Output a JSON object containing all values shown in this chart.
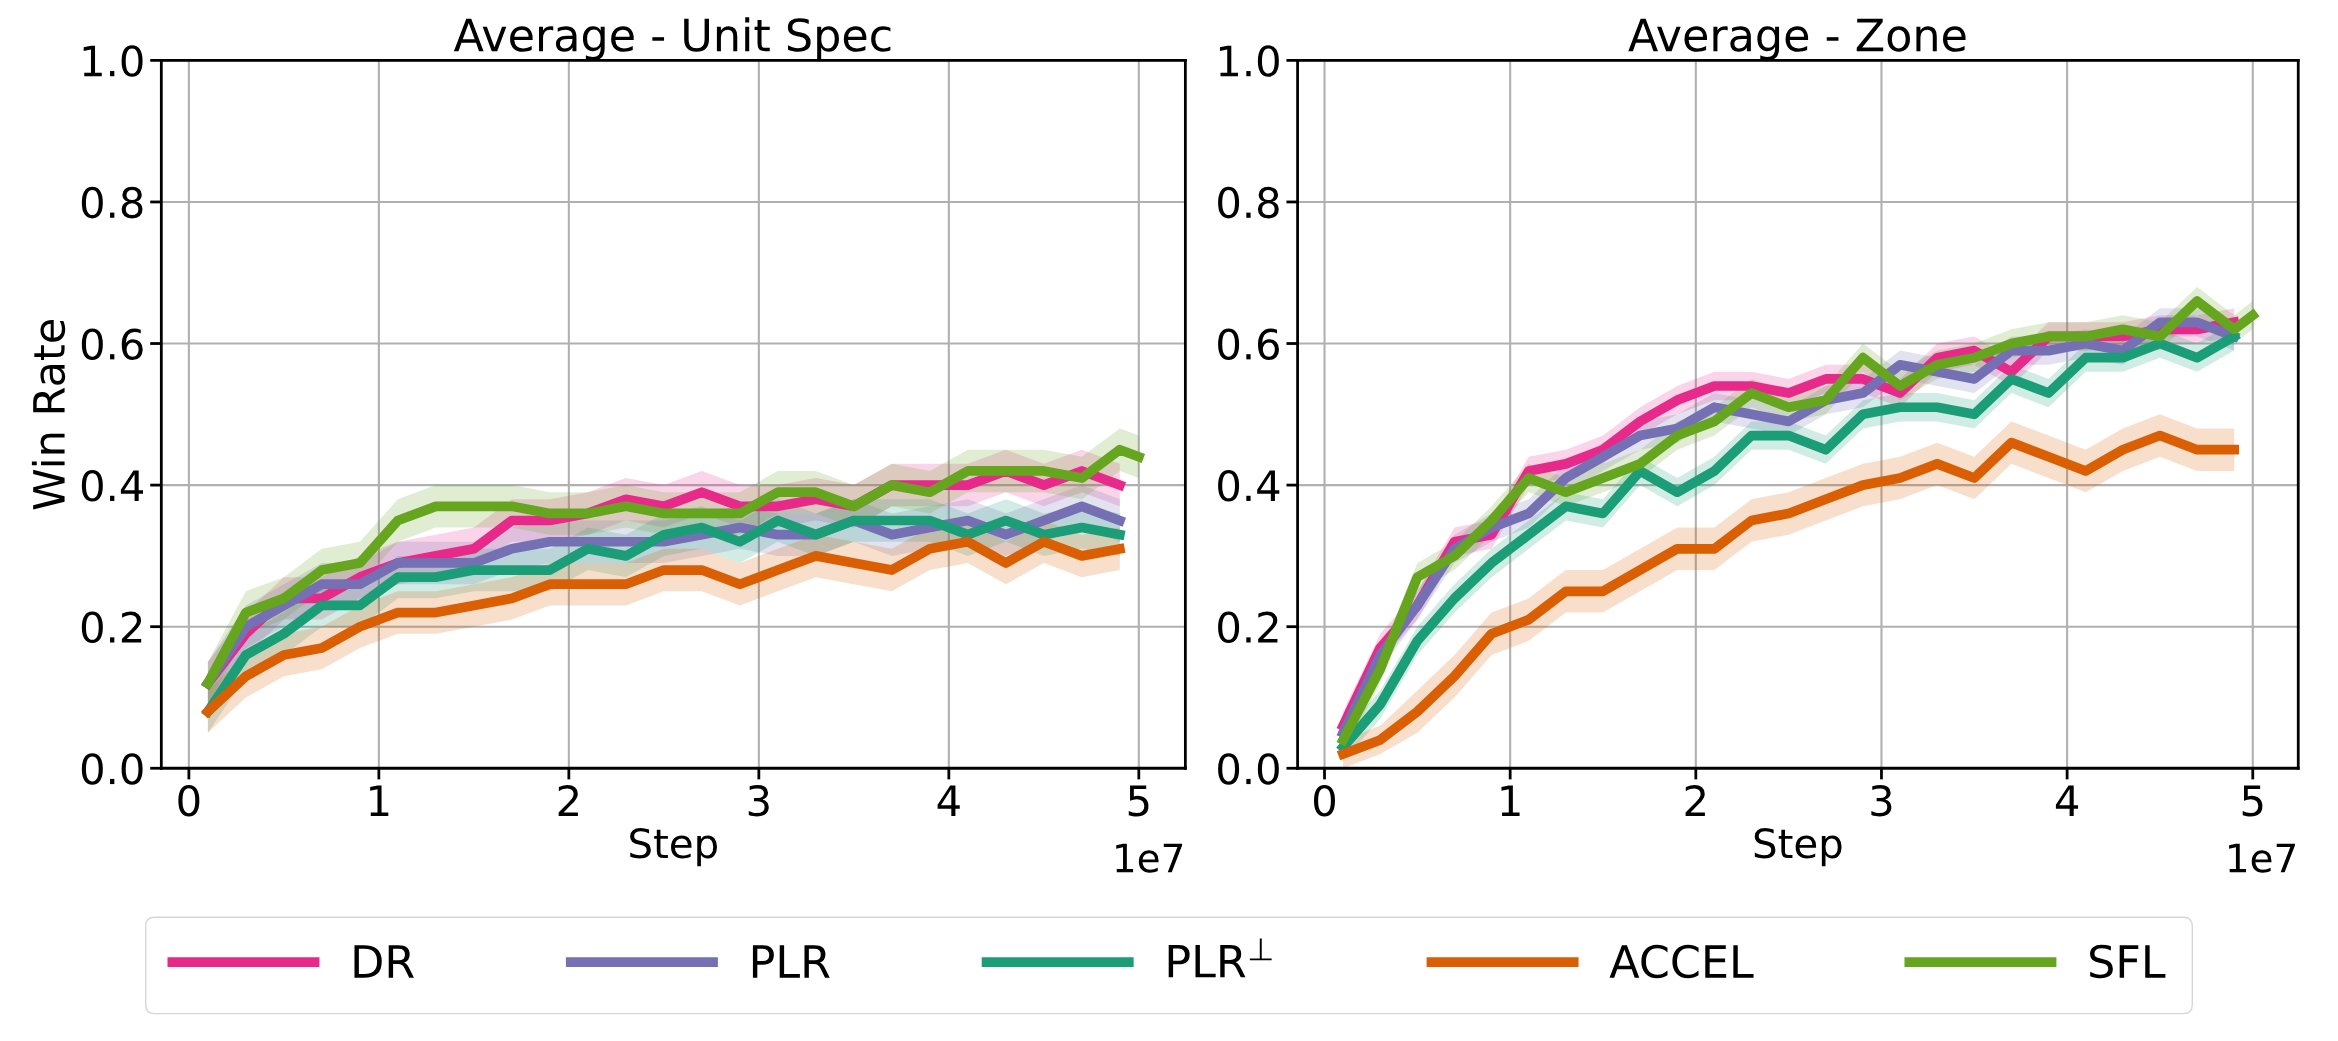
{
  "chart_data": [
    {
      "type": "line",
      "title": "Average - Unit Spec",
      "xlabel": "Step",
      "ylabel": "Win Rate",
      "annotations": [
        "1e7"
      ],
      "x": [
        0.1,
        0.3,
        0.5,
        0.7,
        0.9,
        1.1,
        1.3,
        1.5,
        1.7,
        1.9,
        2.1,
        2.3,
        2.5,
        2.7,
        2.9,
        3.1,
        3.3,
        3.5,
        3.7,
        3.9,
        4.1,
        4.3,
        4.5,
        4.7,
        4.9
      ],
      "xlim": [
        -0.145,
        5.245
      ],
      "xticks": [
        0,
        1,
        2,
        3,
        4,
        5
      ],
      "ylim": [
        0,
        1
      ],
      "yticks": [
        {
          "value": 0,
          "label": "0.0"
        },
        {
          "value": 0.2,
          "label": "0.2"
        },
        {
          "value": 0.4,
          "label": "0.4"
        },
        {
          "value": 0.6,
          "label": "0.6"
        },
        {
          "value": 0.8,
          "label": "0.8"
        },
        {
          "value": 1,
          "label": "1.0"
        }
      ],
      "grid": true,
      "legend": "bottom",
      "line_style": "solid",
      "marker": "none",
      "series": [
        {
          "name": "DR",
          "color": "#e7298a",
          "values": [
            0.12,
            0.19,
            0.24,
            0.24,
            0.27,
            0.29,
            0.3,
            0.31,
            0.35,
            0.35,
            0.36,
            0.38,
            0.37,
            0.39,
            0.37,
            0.37,
            0.38,
            0.37,
            0.4,
            0.4,
            0.4,
            0.42,
            0.4,
            0.42,
            0.4
          ],
          "lower": [
            0.09,
            0.16,
            0.21,
            0.21,
            0.24,
            0.26,
            0.27,
            0.28,
            0.32,
            0.32,
            0.33,
            0.35,
            0.34,
            0.36,
            0.34,
            0.34,
            0.35,
            0.34,
            0.37,
            0.37,
            0.37,
            0.39,
            0.37,
            0.39,
            0.37
          ],
          "upper": [
            0.15,
            0.22,
            0.27,
            0.27,
            0.3,
            0.32,
            0.33,
            0.34,
            0.38,
            0.38,
            0.39,
            0.41,
            0.4,
            0.42,
            0.4,
            0.4,
            0.41,
            0.4,
            0.43,
            0.43,
            0.43,
            0.45,
            0.43,
            0.45,
            0.43
          ]
        },
        {
          "name": "PLR",
          "color": "#7570b3",
          "values": [
            0.12,
            0.2,
            0.23,
            0.26,
            0.26,
            0.29,
            0.29,
            0.29,
            0.31,
            0.32,
            0.32,
            0.32,
            0.32,
            0.33,
            0.34,
            0.33,
            0.33,
            0.35,
            0.33,
            0.34,
            0.35,
            0.33,
            0.35,
            0.37,
            0.35
          ],
          "lower": [
            0.09,
            0.17,
            0.2,
            0.23,
            0.23,
            0.26,
            0.26,
            0.26,
            0.28,
            0.29,
            0.29,
            0.29,
            0.29,
            0.3,
            0.31,
            0.3,
            0.3,
            0.32,
            0.3,
            0.31,
            0.32,
            0.3,
            0.32,
            0.34,
            0.32
          ],
          "upper": [
            0.15,
            0.23,
            0.26,
            0.29,
            0.29,
            0.32,
            0.32,
            0.32,
            0.34,
            0.35,
            0.35,
            0.35,
            0.35,
            0.36,
            0.37,
            0.36,
            0.36,
            0.38,
            0.36,
            0.37,
            0.38,
            0.36,
            0.38,
            0.4,
            0.38
          ]
        },
        {
          "name": "PLR$^{⊥}$",
          "color": "#1b9e77",
          "values": [
            0.08,
            0.16,
            0.19,
            0.23,
            0.23,
            0.27,
            0.27,
            0.28,
            0.28,
            0.28,
            0.31,
            0.3,
            0.33,
            0.34,
            0.32,
            0.35,
            0.33,
            0.35,
            0.35,
            0.35,
            0.33,
            0.35,
            0.33,
            0.34,
            0.33
          ],
          "lower": [
            0.05,
            0.13,
            0.16,
            0.2,
            0.2,
            0.24,
            0.24,
            0.25,
            0.25,
            0.25,
            0.28,
            0.27,
            0.3,
            0.31,
            0.29,
            0.32,
            0.3,
            0.32,
            0.32,
            0.32,
            0.3,
            0.32,
            0.3,
            0.31,
            0.3
          ],
          "upper": [
            0.11,
            0.19,
            0.22,
            0.26,
            0.26,
            0.3,
            0.3,
            0.31,
            0.31,
            0.31,
            0.34,
            0.33,
            0.36,
            0.37,
            0.35,
            0.38,
            0.36,
            0.38,
            0.38,
            0.38,
            0.36,
            0.38,
            0.36,
            0.37,
            0.36
          ]
        },
        {
          "name": "ACCEL",
          "color": "#d95f02",
          "values": [
            0.08,
            0.13,
            0.16,
            0.17,
            0.2,
            0.22,
            0.22,
            0.23,
            0.24,
            0.26,
            0.26,
            0.26,
            0.28,
            0.28,
            0.26,
            0.28,
            0.3,
            0.29,
            0.28,
            0.31,
            0.32,
            0.29,
            0.32,
            0.3,
            0.31
          ],
          "lower": [
            0.05,
            0.1,
            0.13,
            0.14,
            0.17,
            0.19,
            0.19,
            0.2,
            0.21,
            0.23,
            0.23,
            0.23,
            0.25,
            0.25,
            0.23,
            0.25,
            0.27,
            0.26,
            0.25,
            0.28,
            0.29,
            0.26,
            0.29,
            0.27,
            0.28
          ],
          "upper": [
            0.11,
            0.16,
            0.19,
            0.2,
            0.23,
            0.25,
            0.25,
            0.26,
            0.27,
            0.29,
            0.29,
            0.29,
            0.31,
            0.31,
            0.29,
            0.31,
            0.33,
            0.32,
            0.31,
            0.34,
            0.35,
            0.32,
            0.35,
            0.33,
            0.34
          ]
        },
        {
          "name": "SFL",
          "color": "#66a61e",
          "x": [
            0.1,
            0.3,
            0.5,
            0.7,
            0.9,
            1.1,
            1.3,
            1.5,
            1.7,
            1.9,
            2.1,
            2.3,
            2.5,
            2.7,
            2.9,
            3.1,
            3.3,
            3.5,
            3.7,
            3.9,
            4.1,
            4.3,
            4.5,
            4.7,
            4.9,
            5.0
          ],
          "values": [
            0.12,
            0.22,
            0.24,
            0.28,
            0.29,
            0.35,
            0.37,
            0.37,
            0.37,
            0.36,
            0.36,
            0.37,
            0.36,
            0.36,
            0.36,
            0.39,
            0.39,
            0.37,
            0.4,
            0.39,
            0.42,
            0.42,
            0.42,
            0.41,
            0.45,
            0.44
          ],
          "lower": [
            0.09,
            0.19,
            0.21,
            0.25,
            0.26,
            0.32,
            0.34,
            0.34,
            0.34,
            0.33,
            0.33,
            0.34,
            0.33,
            0.33,
            0.33,
            0.36,
            0.36,
            0.34,
            0.37,
            0.36,
            0.39,
            0.39,
            0.39,
            0.38,
            0.42,
            0.41
          ],
          "upper": [
            0.15,
            0.25,
            0.27,
            0.31,
            0.32,
            0.38,
            0.4,
            0.4,
            0.4,
            0.39,
            0.39,
            0.4,
            0.39,
            0.39,
            0.39,
            0.42,
            0.42,
            0.4,
            0.43,
            0.42,
            0.45,
            0.45,
            0.45,
            0.44,
            0.48,
            0.47
          ]
        }
      ]
    },
    {
      "type": "line",
      "title": "Average - Zone",
      "xlabel": "Step",
      "annotations": [
        "1e7"
      ],
      "x": [
        0.1,
        0.3,
        0.5,
        0.7,
        0.9,
        1.1,
        1.3,
        1.5,
        1.7,
        1.9,
        2.1,
        2.3,
        2.5,
        2.7,
        2.9,
        3.1,
        3.3,
        3.5,
        3.7,
        3.9,
        4.1,
        4.3,
        4.5,
        4.7,
        4.9
      ],
      "xlim": [
        -0.145,
        5.245
      ],
      "xticks": [
        0,
        1,
        2,
        3,
        4,
        5
      ],
      "ylim": [
        0,
        1
      ],
      "yticks": [
        {
          "value": 0,
          "label": "0.0"
        },
        {
          "value": 0.2,
          "label": "0.2"
        },
        {
          "value": 0.4,
          "label": "0.4"
        },
        {
          "value": 0.6,
          "label": "0.6"
        },
        {
          "value": 0.8,
          "label": "0.8"
        },
        {
          "value": 1,
          "label": "1.0"
        }
      ],
      "grid": true,
      "line_style": "solid",
      "marker": "none",
      "series": [
        {
          "color": "#e7298a",
          "values": [
            0.06,
            0.17,
            0.23,
            0.32,
            0.33,
            0.42,
            0.43,
            0.45,
            0.49,
            0.52,
            0.54,
            0.54,
            0.53,
            0.55,
            0.55,
            0.53,
            0.58,
            0.59,
            0.56,
            0.61,
            0.61,
            0.61,
            0.62,
            0.62,
            0.63
          ],
          "lower": [
            0.04,
            0.15,
            0.21,
            0.3,
            0.31,
            0.4,
            0.41,
            0.43,
            0.47,
            0.5,
            0.52,
            0.52,
            0.51,
            0.53,
            0.53,
            0.51,
            0.56,
            0.57,
            0.54,
            0.59,
            0.59,
            0.59,
            0.6,
            0.6,
            0.61
          ],
          "upper": [
            0.08,
            0.19,
            0.25,
            0.34,
            0.35,
            0.44,
            0.45,
            0.47,
            0.51,
            0.54,
            0.56,
            0.56,
            0.55,
            0.57,
            0.57,
            0.55,
            0.6,
            0.61,
            0.58,
            0.63,
            0.63,
            0.63,
            0.64,
            0.64,
            0.65
          ]
        },
        {
          "color": "#7570b3",
          "values": [
            0.05,
            0.16,
            0.23,
            0.31,
            0.34,
            0.36,
            0.41,
            0.44,
            0.47,
            0.48,
            0.51,
            0.5,
            0.49,
            0.52,
            0.53,
            0.57,
            0.56,
            0.55,
            0.59,
            0.59,
            0.6,
            0.59,
            0.63,
            0.63,
            0.61
          ],
          "lower": [
            0.03,
            0.14,
            0.21,
            0.29,
            0.32,
            0.34,
            0.39,
            0.42,
            0.45,
            0.46,
            0.49,
            0.48,
            0.47,
            0.5,
            0.51,
            0.55,
            0.54,
            0.53,
            0.57,
            0.57,
            0.58,
            0.57,
            0.61,
            0.61,
            0.59
          ],
          "upper": [
            0.07,
            0.18,
            0.25,
            0.33,
            0.36,
            0.38,
            0.43,
            0.46,
            0.49,
            0.5,
            0.53,
            0.52,
            0.51,
            0.54,
            0.55,
            0.59,
            0.58,
            0.57,
            0.61,
            0.61,
            0.62,
            0.61,
            0.65,
            0.65,
            0.63
          ]
        },
        {
          "color": "#1b9e77",
          "values": [
            0.03,
            0.09,
            0.18,
            0.24,
            0.29,
            0.33,
            0.37,
            0.36,
            0.42,
            0.39,
            0.42,
            0.47,
            0.47,
            0.45,
            0.5,
            0.51,
            0.51,
            0.5,
            0.55,
            0.53,
            0.58,
            0.58,
            0.6,
            0.58,
            0.61
          ],
          "lower": [
            0.01,
            0.07,
            0.16,
            0.22,
            0.27,
            0.31,
            0.35,
            0.34,
            0.4,
            0.37,
            0.4,
            0.45,
            0.45,
            0.43,
            0.48,
            0.49,
            0.49,
            0.48,
            0.53,
            0.51,
            0.56,
            0.56,
            0.58,
            0.56,
            0.59
          ],
          "upper": [
            0.05,
            0.11,
            0.2,
            0.26,
            0.31,
            0.35,
            0.39,
            0.38,
            0.44,
            0.41,
            0.44,
            0.49,
            0.49,
            0.47,
            0.52,
            0.53,
            0.53,
            0.52,
            0.57,
            0.55,
            0.6,
            0.6,
            0.62,
            0.6,
            0.63
          ]
        },
        {
          "color": "#d95f02",
          "values": [
            0.02,
            0.04,
            0.08,
            0.13,
            0.19,
            0.21,
            0.25,
            0.25,
            0.28,
            0.31,
            0.31,
            0.35,
            0.36,
            0.38,
            0.4,
            0.41,
            0.43,
            0.41,
            0.46,
            0.44,
            0.42,
            0.45,
            0.47,
            0.45,
            0.45
          ],
          "lower": [
            0.0,
            0.02,
            0.05,
            0.1,
            0.16,
            0.18,
            0.22,
            0.22,
            0.25,
            0.28,
            0.28,
            0.32,
            0.33,
            0.35,
            0.37,
            0.38,
            0.4,
            0.38,
            0.43,
            0.41,
            0.39,
            0.42,
            0.44,
            0.42,
            0.42
          ],
          "upper": [
            0.04,
            0.06,
            0.11,
            0.16,
            0.22,
            0.24,
            0.28,
            0.28,
            0.31,
            0.34,
            0.34,
            0.38,
            0.39,
            0.41,
            0.43,
            0.44,
            0.46,
            0.44,
            0.49,
            0.47,
            0.45,
            0.48,
            0.5,
            0.48,
            0.48
          ]
        },
        {
          "color": "#66a61e",
          "x": [
            0.1,
            0.3,
            0.5,
            0.7,
            0.9,
            1.1,
            1.3,
            1.5,
            1.7,
            1.9,
            2.1,
            2.3,
            2.5,
            2.7,
            2.9,
            3.1,
            3.3,
            3.5,
            3.7,
            3.9,
            4.1,
            4.3,
            4.5,
            4.7,
            4.9,
            5.0
          ],
          "values": [
            0.04,
            0.14,
            0.27,
            0.3,
            0.35,
            0.41,
            0.39,
            0.41,
            0.43,
            0.47,
            0.49,
            0.53,
            0.51,
            0.52,
            0.58,
            0.54,
            0.57,
            0.58,
            0.6,
            0.61,
            0.61,
            0.62,
            0.61,
            0.66,
            0.62,
            0.64
          ],
          "lower": [
            0.02,
            0.12,
            0.25,
            0.28,
            0.33,
            0.39,
            0.37,
            0.39,
            0.41,
            0.45,
            0.47,
            0.51,
            0.49,
            0.5,
            0.56,
            0.52,
            0.55,
            0.56,
            0.58,
            0.59,
            0.59,
            0.6,
            0.59,
            0.64,
            0.6,
            0.62
          ],
          "upper": [
            0.06,
            0.16,
            0.29,
            0.32,
            0.37,
            0.43,
            0.41,
            0.43,
            0.45,
            0.49,
            0.51,
            0.55,
            0.53,
            0.54,
            0.6,
            0.56,
            0.59,
            0.6,
            0.62,
            0.63,
            0.63,
            0.64,
            0.63,
            0.68,
            0.64,
            0.66
          ]
        }
      ]
    }
  ]
}
